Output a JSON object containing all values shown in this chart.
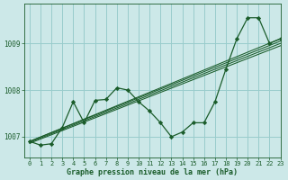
{
  "bg_color": "#cce8e8",
  "grid_color": "#99cccc",
  "line_color": "#1a5c2a",
  "marker_color": "#1a5c2a",
  "xlabel": "Graphe pression niveau de la mer (hPa)",
  "xlabel_color": "#1a5c2a",
  "tick_color": "#1a5c2a",
  "xlim": [
    -0.5,
    23
  ],
  "ylim": [
    1006.55,
    1009.85
  ],
  "yticks": [
    1007,
    1008,
    1009
  ],
  "xticks": [
    0,
    1,
    2,
    3,
    4,
    5,
    6,
    7,
    8,
    9,
    10,
    11,
    12,
    13,
    14,
    15,
    16,
    17,
    18,
    19,
    20,
    21,
    22,
    23
  ],
  "main_series": [
    1006.9,
    1006.82,
    1006.85,
    1007.2,
    1007.75,
    1007.3,
    1007.78,
    1007.8,
    1008.05,
    1008.0,
    1007.75,
    1007.55,
    1007.3,
    1007.0,
    1007.1,
    1007.3,
    1007.3,
    1007.75,
    1008.45,
    1009.1,
    1009.55,
    1009.55,
    1009.0,
    1009.1
  ],
  "trend_lines": [
    [
      [
        0,
        23
      ],
      [
        1006.9,
        1009.1
      ]
    ],
    [
      [
        0,
        23
      ],
      [
        1006.9,
        1009.05
      ]
    ],
    [
      [
        0,
        23
      ],
      [
        1006.88,
        1009.0
      ]
    ],
    [
      [
        0,
        23
      ],
      [
        1006.86,
        1008.95
      ]
    ]
  ]
}
